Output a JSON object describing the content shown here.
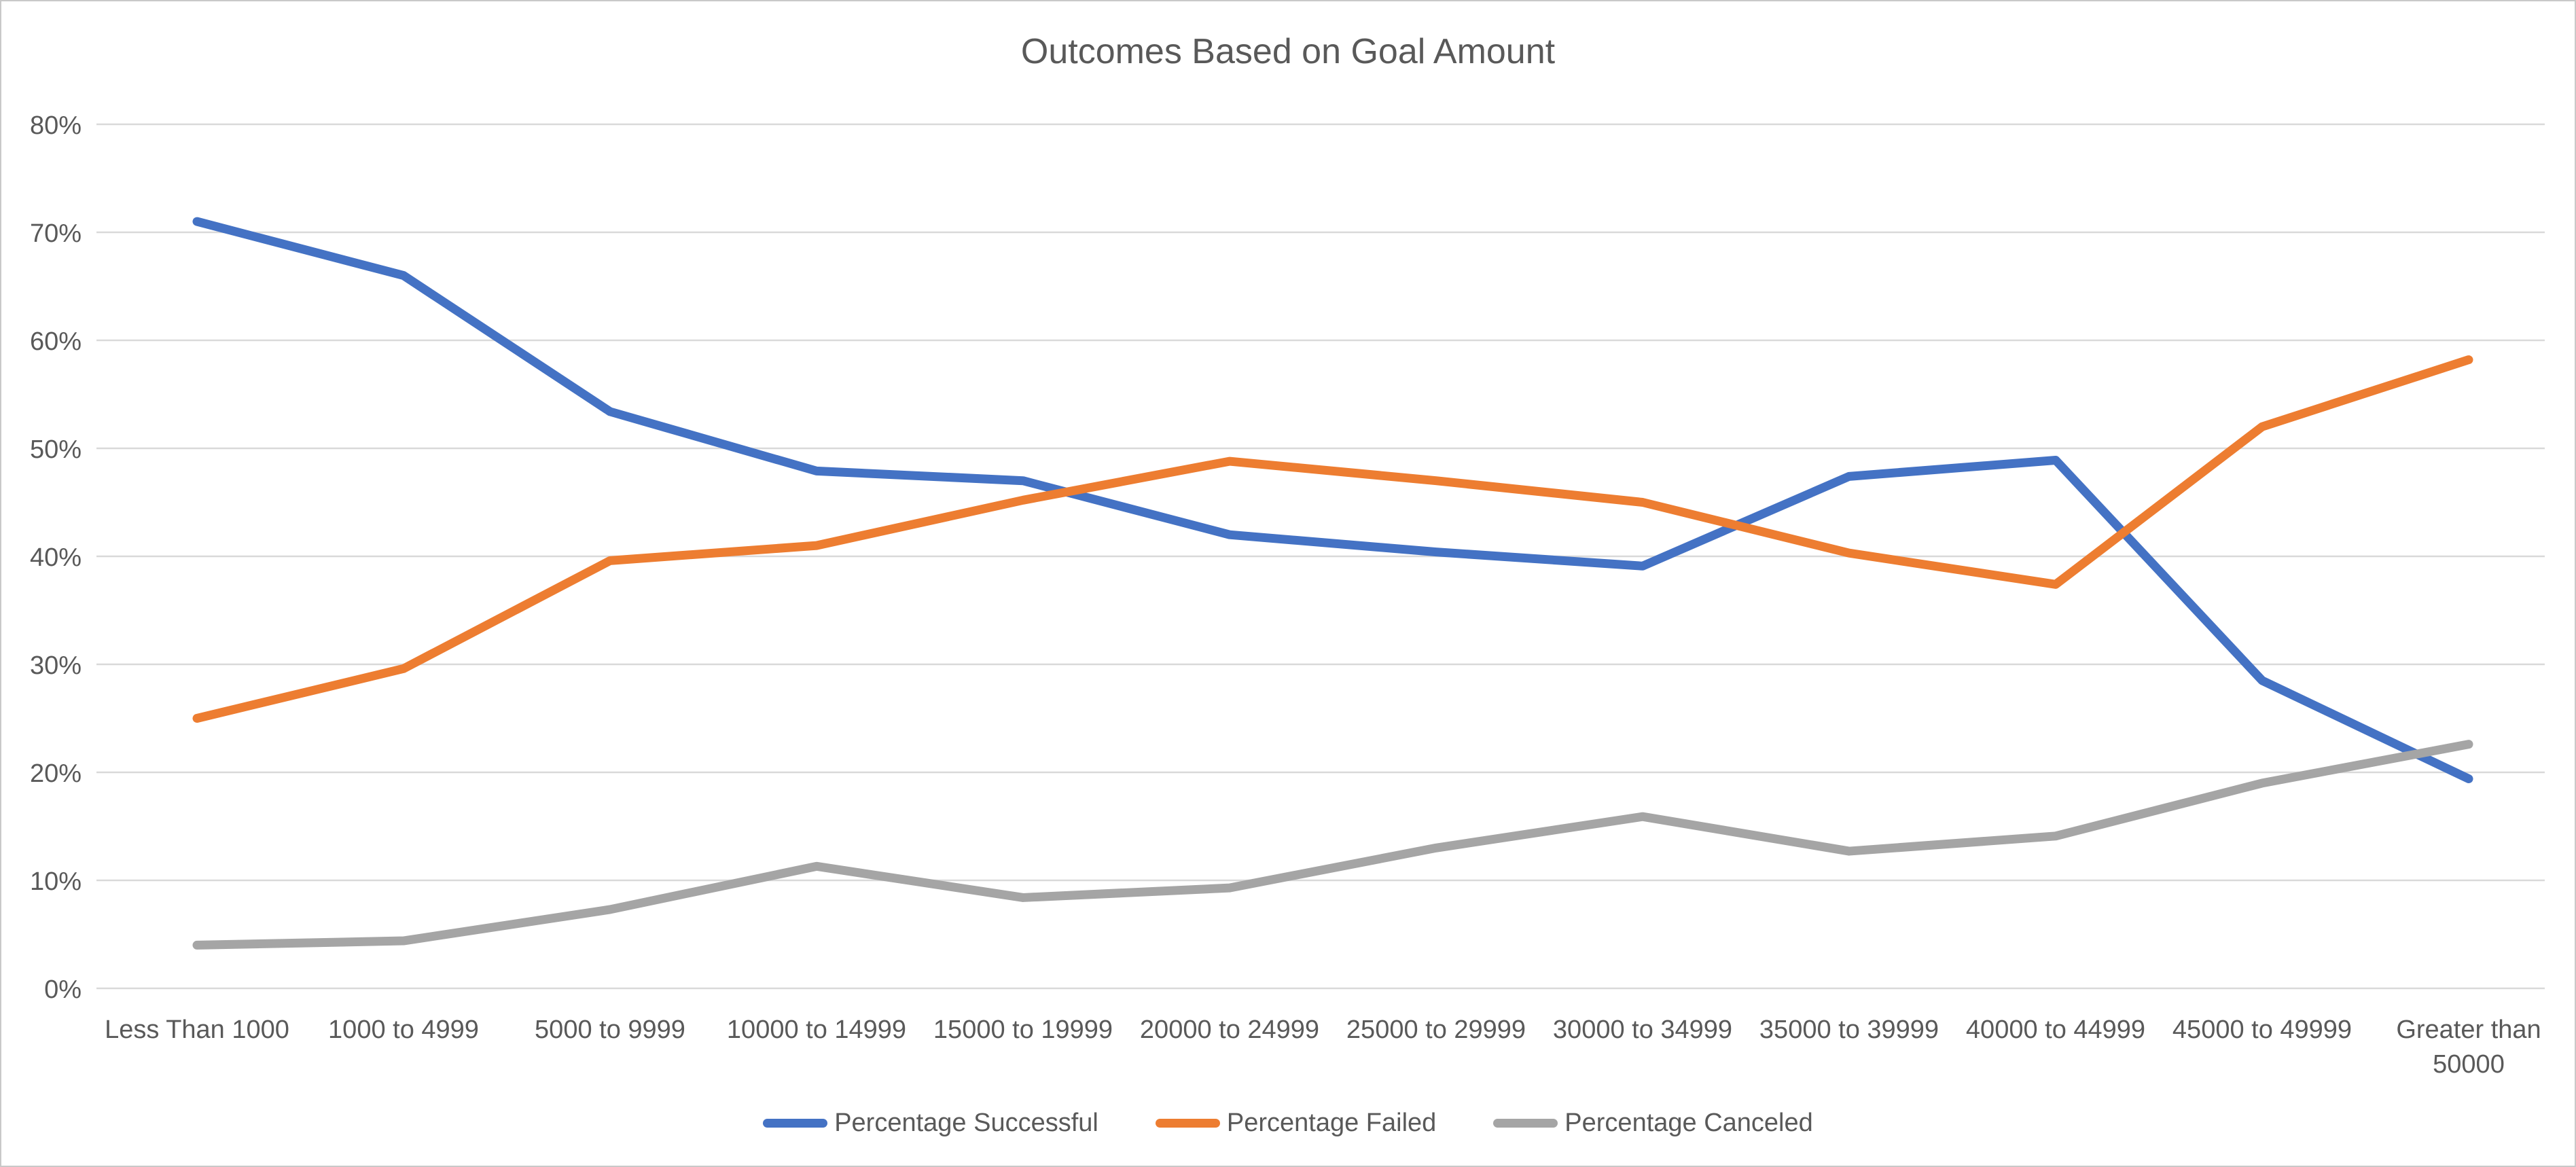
{
  "chart_data": {
    "type": "line",
    "title": "Outcomes Based on Goal Amount",
    "categories": [
      "Less Than 1000",
      "1000 to 4999",
      "5000 to 9999",
      "10000 to 14999",
      "15000 to 19999",
      "20000 to 24999",
      "25000 to 29999",
      "30000 to 34999",
      "35000 to 39999",
      "40000 to 44999",
      "45000 to 49999",
      "Greater than 50000"
    ],
    "series": [
      {
        "name": "Percentage Successful",
        "color": "#4472C4",
        "values": [
          71,
          66,
          53.4,
          47.9,
          47,
          42,
          40.4,
          39.1,
          47.4,
          48.9,
          28.5,
          19.4
        ]
      },
      {
        "name": "Percentage Failed",
        "color": "#ED7D31",
        "values": [
          25,
          29.6,
          39.6,
          41,
          45.2,
          48.8,
          47,
          45,
          40.3,
          37.4,
          52,
          58.2
        ]
      },
      {
        "name": "Percentage Canceled",
        "color": "#A5A5A5",
        "values": [
          4,
          4.4,
          7.3,
          11.3,
          8.4,
          9.3,
          13,
          15.9,
          12.7,
          14.1,
          19,
          22.6
        ]
      }
    ],
    "xlabel": "",
    "ylabel": "",
    "ylim": [
      0,
      80
    ],
    "ytick_step": 10,
    "ytick_labels": [
      "0%",
      "10%",
      "20%",
      "30%",
      "40%",
      "50%",
      "60%",
      "70%",
      "80%"
    ],
    "grid": true,
    "legend_position": "bottom"
  },
  "colors": {
    "gridline": "#D9D9D9",
    "text": "#595959",
    "background": "#FFFFFF",
    "frame": "#C9C9C9"
  }
}
